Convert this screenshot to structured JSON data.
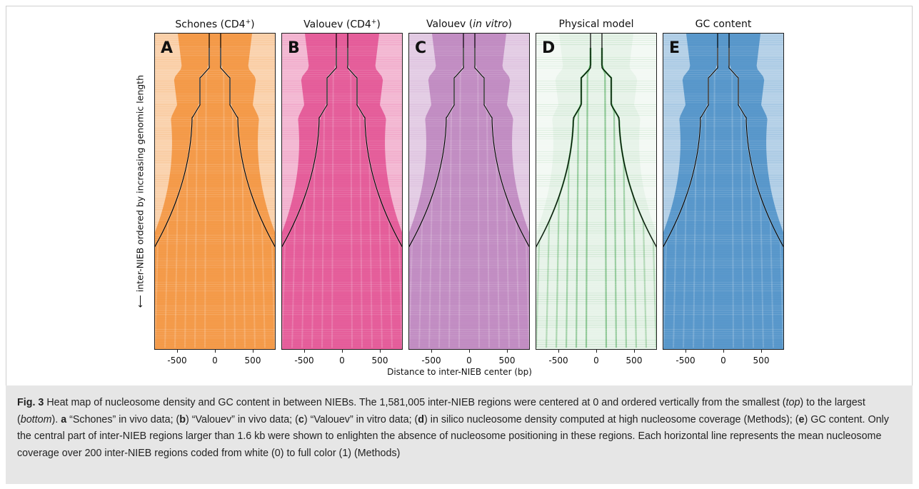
{
  "panels": [
    {
      "letter": "A",
      "title": "Schones (CD4",
      "title_sup": "+",
      "title_close": ")",
      "color": "#f28a2c"
    },
    {
      "letter": "B",
      "title": "Valouev (CD4",
      "title_sup": "+",
      "title_close": ")",
      "color": "#e0438a"
    },
    {
      "letter": "C",
      "title": "Valouev (",
      "title_italic": "in vitro",
      "title_close": ")",
      "color": "#b77ab9"
    },
    {
      "letter": "D",
      "title": "Physical model",
      "color": "#3aa046"
    },
    {
      "letter": "E",
      "title": "GC content",
      "color": "#3d86c2"
    }
  ],
  "x_ticks": [
    "-500",
    "0",
    "500"
  ],
  "x_axis_label": "Distance to inter-NIEB center (bp)",
  "y_axis_label": "⟵  inter-NIEB ordered by increasing genomic length",
  "caption": {
    "fig_label": "Fig. 3",
    "p1": " Heat map of nucleosome density and GC content in between NIEBs. The 1,581,005 inter-NIEB regions were centered at 0 and ordered vertically from the smallest (",
    "top": "top",
    "p2": ") to the largest (",
    "bottom": "bottom",
    "p3": "). ",
    "a": "a",
    "p4": " “Schones” in vivo data; (",
    "b": "b",
    "p5": ") “Valouev” in vivo data; (",
    "c": "c",
    "p6": ") “Valouev” in vitro data; (",
    "d": "d",
    "p7": ") in silico nucleosome density computed at high nucleosome coverage (Methods); (",
    "e": "e",
    "p8": ") GC content. Only the central part of inter-NIEB regions larger than 1.6 kb were shown to enlighten the absence of nucleosome positioning in these regions. Each horizontal line represents the mean nucleosome coverage over 200 inter-NIEB regions coded from white (0) to full color (1) (Methods)"
  }
}
